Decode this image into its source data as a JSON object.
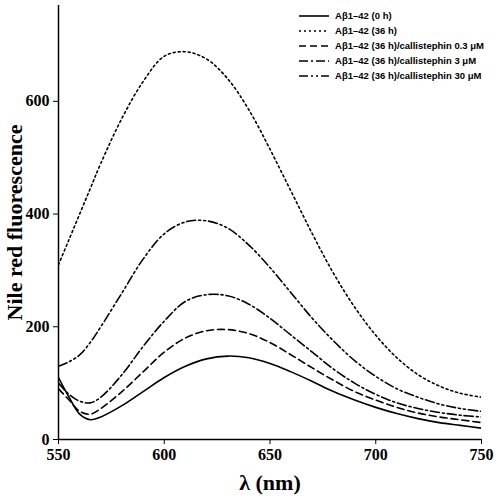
{
  "chart_data": {
    "type": "line",
    "x_label": "λ (nm)",
    "y_label": "Nile red fluorescence",
    "x": [
      550,
      555,
      560,
      565,
      570,
      580,
      590,
      600,
      610,
      620,
      630,
      640,
      650,
      660,
      670,
      680,
      690,
      700,
      710,
      720,
      730,
      740,
      750
    ],
    "xlim": [
      550,
      750
    ],
    "xticks": [
      550,
      600,
      650,
      700,
      750
    ],
    "ylim": [
      0,
      770
    ],
    "yticks": [
      0,
      200,
      400,
      600
    ],
    "grid": false,
    "legend": "top-right",
    "series": [
      {
        "name": "Aβ1–42 (0 h)",
        "color": "#000000",
        "line_style": "solid",
        "values": [
          110,
          75,
          45,
          35,
          40,
          60,
          85,
          110,
          130,
          143,
          148,
          145,
          135,
          120,
          103,
          85,
          70,
          57,
          46,
          37,
          30,
          25,
          20
        ]
      },
      {
        "name": "Aβ1–42 (36 h)",
        "color": "#000000",
        "line_style": "dotted",
        "values": [
          310,
          355,
          400,
          445,
          490,
          570,
          635,
          680,
          688,
          675,
          640,
          585,
          515,
          440,
          365,
          295,
          235,
          185,
          145,
          115,
          95,
          82,
          75
        ]
      },
      {
        "name": "Aβ1–42 (36 h)/callistephin 0.3 μM",
        "color": "#000000",
        "line_style": "dashed",
        "values": [
          90,
          70,
          50,
          45,
          55,
          85,
          120,
          155,
          180,
          193,
          195,
          188,
          172,
          150,
          127,
          105,
          85,
          70,
          57,
          47,
          40,
          35,
          30
        ]
      },
      {
        "name": "Aβ1–42 (36 h)/callistephin 3 μM",
        "color": "#000000",
        "line_style": "dashdot",
        "values": [
          100,
          80,
          68,
          65,
          75,
          115,
          165,
          210,
          245,
          257,
          255,
          240,
          215,
          185,
          155,
          125,
          100,
          80,
          65,
          55,
          48,
          43,
          40
        ]
      },
      {
        "name": "Aβ1–42 (36 h)/callistephin 30 μM",
        "color": "#000000",
        "line_style": "dashdotdot",
        "values": [
          130,
          138,
          150,
          172,
          200,
          260,
          320,
          365,
          386,
          388,
          375,
          345,
          305,
          260,
          215,
          175,
          140,
          112,
          90,
          75,
          63,
          55,
          50
        ]
      }
    ]
  }
}
